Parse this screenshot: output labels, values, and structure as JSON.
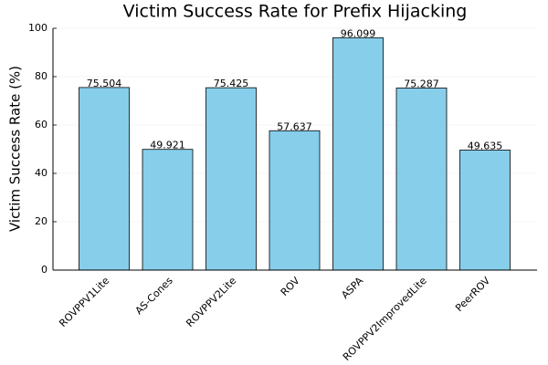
{
  "chart_data": {
    "type": "bar",
    "title": "Victim Success Rate for Prefix Hijacking",
    "y_label": "Victim Success Rate (%)",
    "categories": [
      "ROVPPV1Lite",
      "AS-Cones",
      "ROVPPV2Lite",
      "ROV",
      "ASPA",
      "ROVPPV2ImprovedLite",
      "PeerROV"
    ],
    "values": [
      75.504,
      49.921,
      75.425,
      57.637,
      96.099,
      75.287,
      49.635
    ],
    "color": "#87ceeb",
    "ylim": [
      0,
      100
    ],
    "yticks": [
      0,
      20,
      40,
      60,
      80,
      100
    ],
    "grid": true
  }
}
